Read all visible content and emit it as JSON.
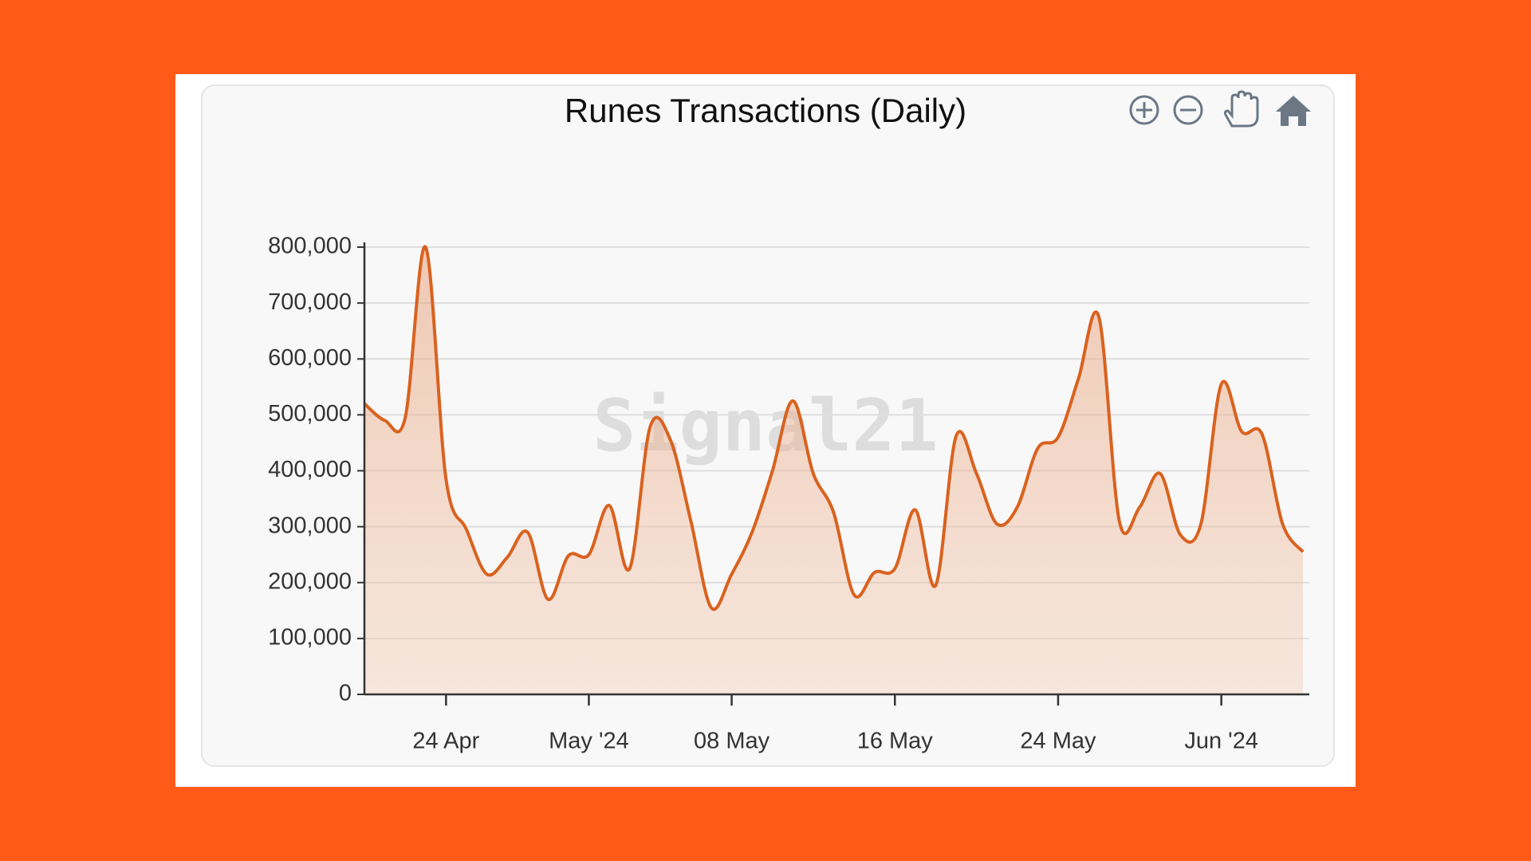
{
  "chart_data": {
    "type": "area",
    "title": "Runes Transactions (Daily)",
    "watermark": "Signal21",
    "x": [
      "2024-04-20",
      "2024-04-21",
      "2024-04-22",
      "2024-04-23",
      "2024-04-24",
      "2024-04-25",
      "2024-04-26",
      "2024-04-27",
      "2024-04-28",
      "2024-04-29",
      "2024-04-30",
      "2024-05-01",
      "2024-05-02",
      "2024-05-03",
      "2024-05-04",
      "2024-05-05",
      "2024-05-06",
      "2024-05-07",
      "2024-05-08",
      "2024-05-09",
      "2024-05-10",
      "2024-05-11",
      "2024-05-12",
      "2024-05-13",
      "2024-05-14",
      "2024-05-15",
      "2024-05-16",
      "2024-05-17",
      "2024-05-18",
      "2024-05-19",
      "2024-05-20",
      "2024-05-21",
      "2024-05-22",
      "2024-05-23",
      "2024-05-24",
      "2024-05-25",
      "2024-05-26",
      "2024-05-27",
      "2024-05-28",
      "2024-05-29",
      "2024-05-30",
      "2024-05-31",
      "2024-06-01",
      "2024-06-02",
      "2024-06-03",
      "2024-06-04",
      "2024-06-05"
    ],
    "values": [
      520000,
      490000,
      495000,
      800000,
      385000,
      295000,
      215000,
      245000,
      290000,
      170000,
      248000,
      250000,
      338000,
      225000,
      478000,
      455000,
      310000,
      155000,
      215000,
      290000,
      400000,
      525000,
      395000,
      325000,
      178000,
      218000,
      225000,
      330000,
      195000,
      462000,
      395000,
      305000,
      335000,
      440000,
      460000,
      565000,
      675000,
      310000,
      335000,
      395000,
      285000,
      305000,
      555000,
      470000,
      465000,
      305000,
      255000
    ],
    "color": "#d9621f",
    "xlim": [
      "2024-04-20",
      "2024-06-05"
    ],
    "xticks": [
      {
        "value": "2024-04-24",
        "label": "24 Apr"
      },
      {
        "value": "2024-05-01",
        "label": "May '24"
      },
      {
        "value": "2024-05-08",
        "label": "08 May"
      },
      {
        "value": "2024-05-16",
        "label": "16 May"
      },
      {
        "value": "2024-05-24",
        "label": "24 May"
      },
      {
        "value": "2024-06-01",
        "label": "Jun '24"
      }
    ],
    "ylim": [
      0,
      800000
    ],
    "yticks": [
      {
        "value": 0,
        "label": "0"
      },
      {
        "value": 100000,
        "label": "100,000"
      },
      {
        "value": 200000,
        "label": "200,000"
      },
      {
        "value": 300000,
        "label": "300,000"
      },
      {
        "value": 400000,
        "label": "400,000"
      },
      {
        "value": 500000,
        "label": "500,000"
      },
      {
        "value": 600000,
        "label": "600,000"
      },
      {
        "value": 700000,
        "label": "700,000"
      },
      {
        "value": 800000,
        "label": "800,000"
      }
    ],
    "grid": true
  }
}
